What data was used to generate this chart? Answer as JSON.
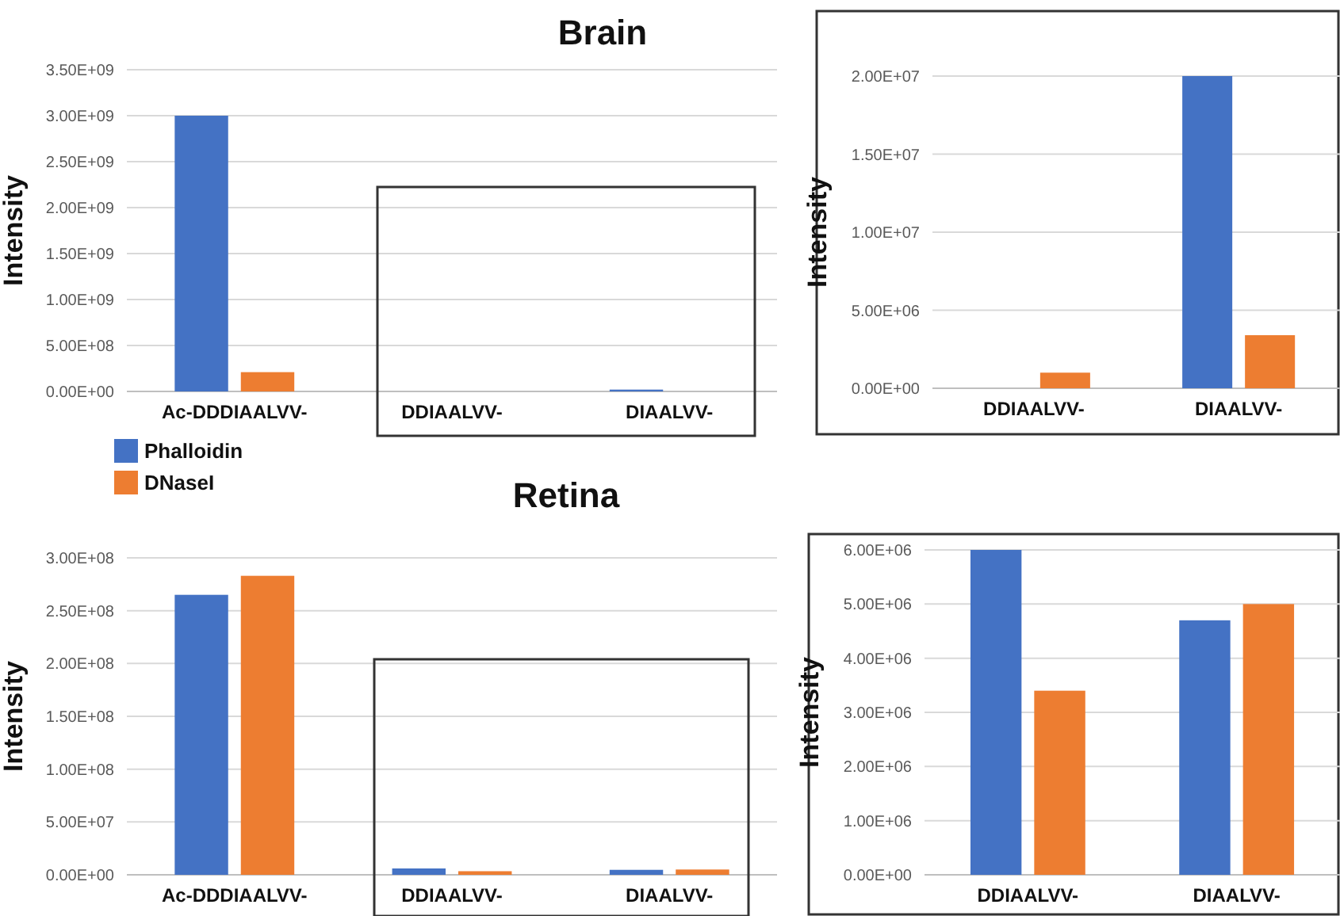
{
  "chart_data": [
    {
      "type": "bar",
      "title": "Brain",
      "ylabel": "Intensity",
      "categories": [
        "Ac-DDDIAALVV-",
        "DDIAALVV-",
        "DIAALVV-"
      ],
      "series": [
        {
          "color": "#4472c4",
          "values": [
            3000000000.0,
            0,
            20000000.0
          ]
        },
        {
          "color": "#ed7d31",
          "values": [
            210000000.0,
            null,
            null
          ]
        }
      ],
      "ylim": [
        0,
        3500000000.0
      ],
      "yticks": [
        {
          "value": 0,
          "label": "0.00E+00"
        },
        {
          "value": 500000000.0,
          "label": "5.00E+08"
        },
        {
          "value": 1000000000.0,
          "label": "1.00E+09"
        },
        {
          "value": 1500000000.0,
          "label": "1.50E+09"
        },
        {
          "value": 2000000000.0,
          "label": "2.00E+09"
        },
        {
          "value": 2500000000.0,
          "label": "2.50E+09"
        },
        {
          "value": 3000000000.0,
          "label": "3.00E+09"
        },
        {
          "value": 3500000000.0,
          "label": "3.50E+09"
        }
      ],
      "grid": "y"
    },
    {
      "type": "bar",
      "ylabel": "Intensity",
      "categories": [
        "DDIAALVV-",
        "DIAALVV-"
      ],
      "series": [
        {
          "color": "#4472c4",
          "values": [
            0,
            20000000.0
          ]
        },
        {
          "color": "#ed7d31",
          "values": [
            1000000.0,
            3400000.0
          ]
        }
      ],
      "ylim": [
        0,
        20000000.0
      ],
      "yticks": [
        {
          "value": 0,
          "label": "0.00E+00"
        },
        {
          "value": 5000000.0,
          "label": "5.00E+06"
        },
        {
          "value": 10000000.0,
          "label": "1.00E+07"
        },
        {
          "value": 15000000.0,
          "label": "1.50E+07"
        },
        {
          "value": 20000000.0,
          "label": "2.00E+07"
        }
      ],
      "grid": "y"
    },
    {
      "type": "bar",
      "title": "Retina",
      "ylabel": "Intensity",
      "categories": [
        "Ac-DDDIAALVV-",
        "DDIAALVV-",
        "DIAALVV-"
      ],
      "series": [
        {
          "name": "Phalloidin",
          "color": "#4472c4",
          "values": [
            265000000.0,
            6000000.0,
            4700000.0
          ]
        },
        {
          "name": "DNaseI",
          "color": "#ed7d31",
          "values": [
            283000000.0,
            3400000.0,
            5000000.0
          ]
        }
      ],
      "ylim": [
        0,
        300000000.0
      ],
      "yticks": [
        {
          "value": 0,
          "label": "0.00E+00"
        },
        {
          "value": 50000000.0,
          "label": "5.00E+07"
        },
        {
          "value": 100000000.0,
          "label": "1.00E+08"
        },
        {
          "value": 150000000.0,
          "label": "1.50E+08"
        },
        {
          "value": 200000000.0,
          "label": "2.00E+08"
        },
        {
          "value": 250000000.0,
          "label": "2.50E+08"
        },
        {
          "value": 300000000.0,
          "label": "3.00E+08"
        }
      ],
      "grid": "y",
      "legend": "top left"
    },
    {
      "type": "bar",
      "ylabel": "Intensity",
      "categories": [
        "DDIAALVV-",
        "DIAALVV-"
      ],
      "series": [
        {
          "color": "#4472c4",
          "values": [
            6000000.0,
            4700000.0
          ]
        },
        {
          "color": "#ed7d31",
          "values": [
            3400000.0,
            5000000.0
          ]
        }
      ],
      "ylim": [
        0,
        6000000.0
      ],
      "yticks": [
        {
          "value": 0,
          "label": "0.00E+00"
        },
        {
          "value": 1000000.0,
          "label": "1.00E+06"
        },
        {
          "value": 2000000.0,
          "label": "2.00E+06"
        },
        {
          "value": 3000000.0,
          "label": "3.00E+06"
        },
        {
          "value": 4000000.0,
          "label": "4.00E+06"
        },
        {
          "value": 5000000.0,
          "label": "5.00E+06"
        },
        {
          "value": 6000000.0,
          "label": "6.00E+06"
        }
      ],
      "grid": "y"
    }
  ]
}
